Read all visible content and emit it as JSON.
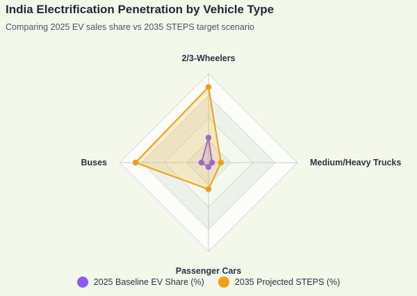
{
  "chart_data": {
    "type": "radar",
    "title": "India Electrification Penetration by Vehicle Type",
    "subtitle": "Comparing 2025 EV sales share vs 2035 STEPS target scenario",
    "axes": [
      "2/3-Wheelers",
      "Medium/Heavy Trucks",
      "Passenger Cars",
      "Buses"
    ],
    "range": [
      0,
      100
    ],
    "rings": 4,
    "series": [
      {
        "name": "2025 Baseline EV Share (%)",
        "color": "#8b5cf6",
        "values": [
          28,
          4,
          5,
          8
        ]
      },
      {
        "name": "2035 Projected STEPS (%)",
        "color": "#f59e0b",
        "values": [
          85,
          14,
          30,
          82
        ]
      }
    ],
    "legend": "bottom-center"
  }
}
